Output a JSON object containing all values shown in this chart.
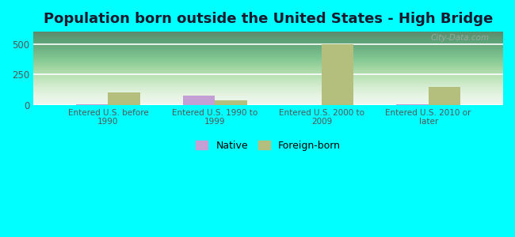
{
  "title": "Population born outside the United States - High Bridge",
  "categories": [
    "Entered U.S. before\n1990",
    "Entered U.S. 1990 to\n1999",
    "Entered U.S. 2000 to\n2009",
    "Entered U.S. 2010 or\nlater"
  ],
  "native_values": [
    5,
    75,
    0,
    4
  ],
  "foreign_values": [
    105,
    40,
    497,
    150
  ],
  "native_color": "#c49fd4",
  "foreign_color": "#b5bf7d",
  "background_color": "#00ffff",
  "ylim": [
    0,
    600
  ],
  "yticks": [
    0,
    250,
    500
  ],
  "bar_width": 0.3,
  "title_fontsize": 13,
  "title_color": "#1a1a2e",
  "tick_color": "#555555",
  "legend_labels": [
    "Native",
    "Foreign-born"
  ],
  "watermark": "City-Data.com",
  "grid_color": "#ffffff",
  "plot_bg_color": "#e8f3e8"
}
